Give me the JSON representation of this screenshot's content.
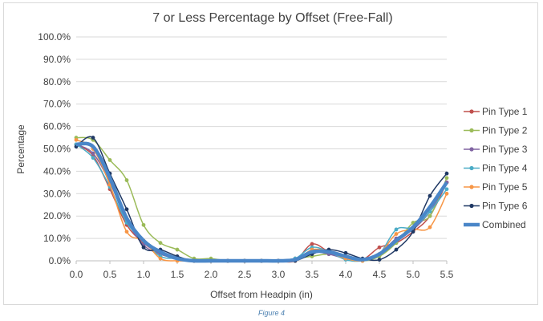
{
  "chart_data": {
    "type": "line",
    "title": "7 or Less Percentage by Offset (Free-Fall)",
    "xlabel": "Offset from Headpin (in)",
    "ylabel": "Percentage",
    "xlim": [
      0,
      5.5
    ],
    "ylim": [
      0,
      100
    ],
    "x_ticks": [
      "0.0",
      "0.5",
      "1.0",
      "1.5",
      "2.0",
      "2.5",
      "3.0",
      "3.5",
      "4.0",
      "4.5",
      "5.0",
      "5.5"
    ],
    "y_ticks": [
      "0.0%",
      "10.0%",
      "20.0%",
      "30.0%",
      "40.0%",
      "50.0%",
      "60.0%",
      "70.0%",
      "80.0%",
      "90.0%",
      "100.0%"
    ],
    "legend_position": "right",
    "x": [
      0,
      0.25,
      0.5,
      0.75,
      1.0,
      1.25,
      1.5,
      1.75,
      2.0,
      2.25,
      2.5,
      2.75,
      3.0,
      3.25,
      3.5,
      3.75,
      4.0,
      4.25,
      4.5,
      4.75,
      5.0,
      5.25,
      5.5
    ],
    "series": [
      {
        "name": "Pin Type 1",
        "color": "#c0504d",
        "values": [
          52,
          47,
          32,
          16,
          8,
          3,
          1,
          0,
          0,
          0,
          0,
          0,
          0,
          0,
          7.5,
          4,
          1,
          0.5,
          6,
          8,
          13,
          20,
          35
        ]
      },
      {
        "name": "Pin Type 2",
        "color": "#9bbb59",
        "values": [
          55,
          54,
          45,
          36,
          16,
          8,
          5,
          1,
          1,
          0,
          0,
          0,
          0,
          1,
          2,
          3,
          2,
          0,
          2,
          8,
          17,
          20,
          37
        ]
      },
      {
        "name": "Pin Type 3",
        "color": "#8064a2",
        "values": [
          52,
          48,
          35,
          18,
          7,
          3,
          1,
          0,
          0,
          0,
          0,
          0,
          0,
          1,
          4,
          3,
          1,
          0.5,
          3,
          10,
          14,
          22,
          35
        ]
      },
      {
        "name": "Pin Type 4",
        "color": "#4bacc6",
        "values": [
          52,
          46,
          33,
          17,
          9,
          2,
          1,
          0,
          0,
          0,
          0,
          0,
          0,
          1,
          6,
          4,
          0.5,
          0,
          3,
          14,
          15,
          22,
          32
        ]
      },
      {
        "name": "Pin Type 5",
        "color": "#f79646",
        "values": [
          54,
          50,
          34,
          13,
          9,
          1,
          0,
          0,
          0,
          0,
          0,
          0,
          0,
          0,
          5,
          4,
          1,
          0,
          3,
          12,
          14,
          15,
          30
        ]
      },
      {
        "name": "Pin Type 6",
        "color": "#1f3864",
        "values": [
          51,
          55,
          39,
          23,
          6,
          5,
          2,
          0,
          0,
          0,
          0,
          0,
          0,
          0,
          3,
          5,
          3.5,
          1,
          0.5,
          5,
          13,
          29,
          39
        ]
      },
      {
        "name": "Combined",
        "color": "#4a86c8",
        "values": [
          52,
          51,
          37,
          19,
          9,
          4,
          1,
          0,
          0,
          0,
          0,
          0,
          0,
          0.5,
          4,
          4,
          2,
          0.5,
          3,
          9,
          15,
          24,
          35
        ]
      }
    ]
  },
  "caption": "Figure 4"
}
